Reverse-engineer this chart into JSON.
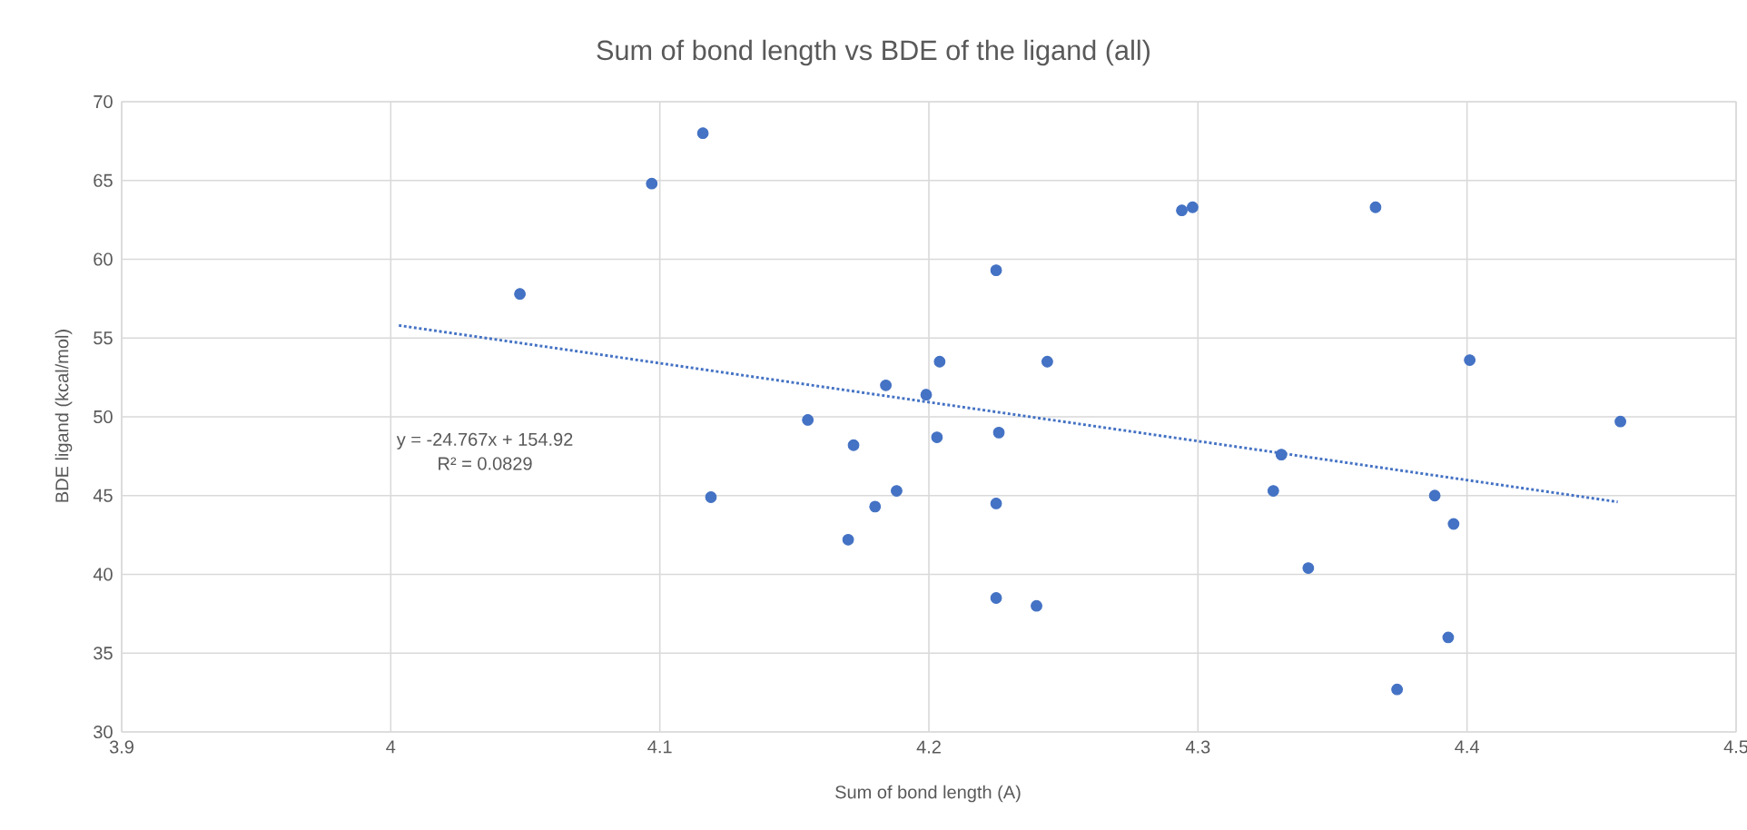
{
  "chart_data": {
    "type": "scatter",
    "title": "Sum of bond length vs BDE of the ligand (all)",
    "xlabel": "Sum of bond length (A)",
    "ylabel": "BDE  ligand (kcal/mol)",
    "xlim": [
      3.9,
      4.5
    ],
    "xticks": [
      3.9,
      4,
      4.1,
      4.2,
      4.3,
      4.4,
      4.5
    ],
    "ylim": [
      30,
      70
    ],
    "yticks": [
      30,
      35,
      40,
      45,
      50,
      55,
      60,
      65,
      70
    ],
    "grid": true,
    "annotations": [
      "y = -24.767x + 154.92",
      "R² = 0.0829"
    ],
    "series": [
      {
        "marker": "circle",
        "color": "#4472c4",
        "x": [
          4.048,
          4.097,
          4.116,
          4.119,
          4.155,
          4.172,
          4.17,
          4.18,
          4.184,
          4.188,
          4.199,
          4.203,
          4.204,
          4.225,
          4.226,
          4.225,
          4.225,
          4.24,
          4.244,
          4.294,
          4.298,
          4.328,
          4.331,
          4.341,
          4.366,
          4.374,
          4.388,
          4.393,
          4.395,
          4.401,
          4.457
        ],
        "values": [
          57.8,
          64.8,
          68.0,
          44.9,
          49.8,
          48.2,
          42.2,
          44.3,
          52.0,
          45.3,
          51.4,
          48.7,
          53.5,
          59.3,
          49.0,
          44.5,
          38.5,
          38.0,
          53.5,
          63.1,
          63.3,
          45.3,
          47.6,
          40.4,
          63.3,
          32.7,
          45.0,
          36.0,
          43.2,
          53.6,
          49.7
        ]
      },
      {
        "type": "line",
        "color": "#4472c4",
        "line_style": "dotted",
        "x": [
          4.003,
          4.456
        ],
        "values": [
          55.8,
          44.6
        ]
      }
    ]
  }
}
